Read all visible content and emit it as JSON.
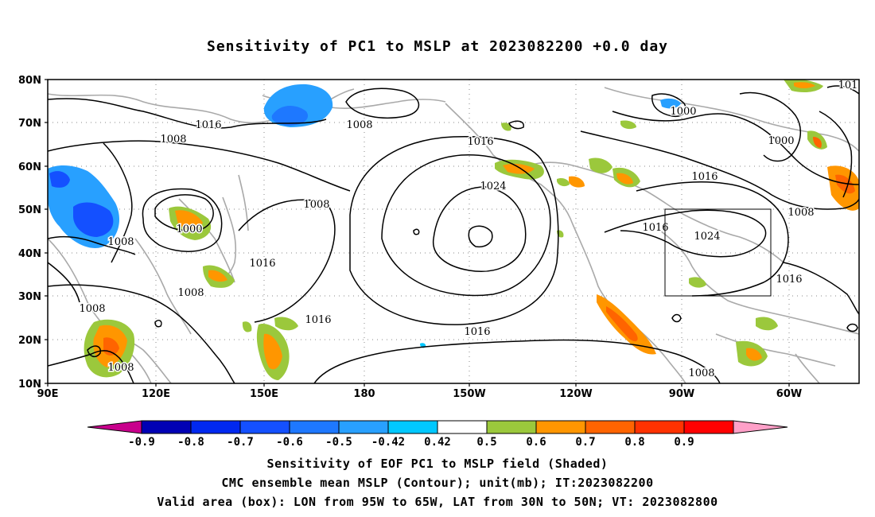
{
  "title": "Sensitivity of PC1 to MSLP at 2023082200 +0.0 day",
  "lat_labels": [
    "80N",
    "70N",
    "60N",
    "50N",
    "40N",
    "30N",
    "20N",
    "10N"
  ],
  "lon_labels": [
    "90E",
    "120E",
    "150E",
    "180",
    "150W",
    "120W",
    "90W",
    "60W"
  ],
  "contour_labels": [
    {
      "name": "1016-w",
      "text": "1016"
    },
    {
      "name": "1008-w",
      "text": "1008"
    },
    {
      "name": "1008-nw",
      "text": "1008"
    },
    {
      "name": "1000-nw",
      "text": "1000"
    },
    {
      "name": "1008-nc",
      "text": "1008"
    },
    {
      "name": "1016-nc",
      "text": "1016"
    },
    {
      "name": "1024-c",
      "text": "1024"
    },
    {
      "name": "1008-c",
      "text": "1008"
    },
    {
      "name": "1008-w2",
      "text": "1008"
    },
    {
      "name": "1008-sw",
      "text": "1008"
    },
    {
      "name": "1016-sw",
      "text": "1016"
    },
    {
      "name": "1016-c2",
      "text": "1016"
    },
    {
      "name": "1016-sc",
      "text": "1016"
    },
    {
      "name": "1016-s",
      "text": "1016"
    },
    {
      "name": "1008-s",
      "text": "1008"
    },
    {
      "name": "1000-ne",
      "text": "1000"
    },
    {
      "name": "1000-ne2",
      "text": "1000"
    },
    {
      "name": "1016-ne",
      "text": "1016"
    },
    {
      "name": "1016-e",
      "text": "1016"
    },
    {
      "name": "1024-e",
      "text": "1024"
    },
    {
      "name": "1008-e",
      "text": "1008"
    },
    {
      "name": "1016-se",
      "text": "1016"
    },
    {
      "name": "1008-se",
      "text": "1008"
    },
    {
      "name": "101-ne",
      "text": "101"
    }
  ],
  "colorbar": {
    "ticks": [
      "-0.9",
      "-0.8",
      "-0.7",
      "-0.6",
      "-0.5",
      "-0.42",
      "0.42",
      "0.5",
      "0.6",
      "0.7",
      "0.8",
      "0.9"
    ],
    "colors": [
      "#c8008c",
      "#0000b4",
      "#0028f0",
      "#1450ff",
      "#1e78ff",
      "#28a0ff",
      "#00c8ff",
      "#ffffff",
      "#9bc83c",
      "#ff9600",
      "#ff6400",
      "#ff3200",
      "#ff0000",
      "#ffa0c8"
    ]
  },
  "captions": [
    "Sensitivity of EOF PC1 to MSLP field (Shaded)",
    "CMC ensemble mean MSLP (Contour); unit(mb); IT:2023082200",
    "Valid area (box): LON from 95W to 65W, LAT from 30N to 50N; VT: 2023082800"
  ]
}
